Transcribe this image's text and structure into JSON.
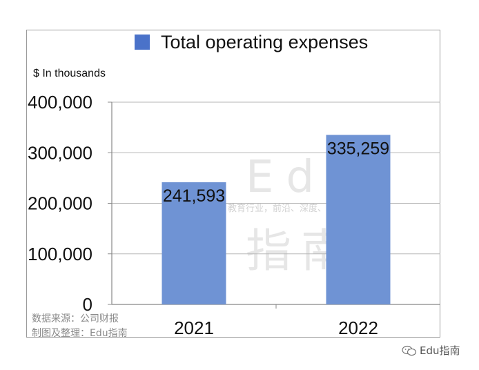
{
  "chart_data": {
    "type": "bar",
    "categories": [
      "2021",
      "2022"
    ],
    "series": [
      {
        "name": "Total operating expenses",
        "values": [
          241593,
          335259
        ]
      }
    ],
    "value_labels": [
      "241,593",
      "335,259"
    ],
    "yticks": [
      "0",
      "100,000",
      "200,000",
      "300,000",
      "400,000"
    ],
    "ylim": [
      0,
      400000
    ],
    "ylabel": "$ In thousands",
    "legend_position": "top",
    "grid": true,
    "bar_color": "#6f93d4",
    "legend_color": "#4a72c9"
  },
  "source_line": "数据来源：公司财报",
  "compiled_by": "制图及整理：Edu指南",
  "watermark": {
    "text": "Edu",
    "subtitle": "教育行业，前沿、深度、独家",
    "cn": "指南"
  },
  "brand": {
    "icon": "wechat-icon",
    "name": "Edu指南"
  }
}
